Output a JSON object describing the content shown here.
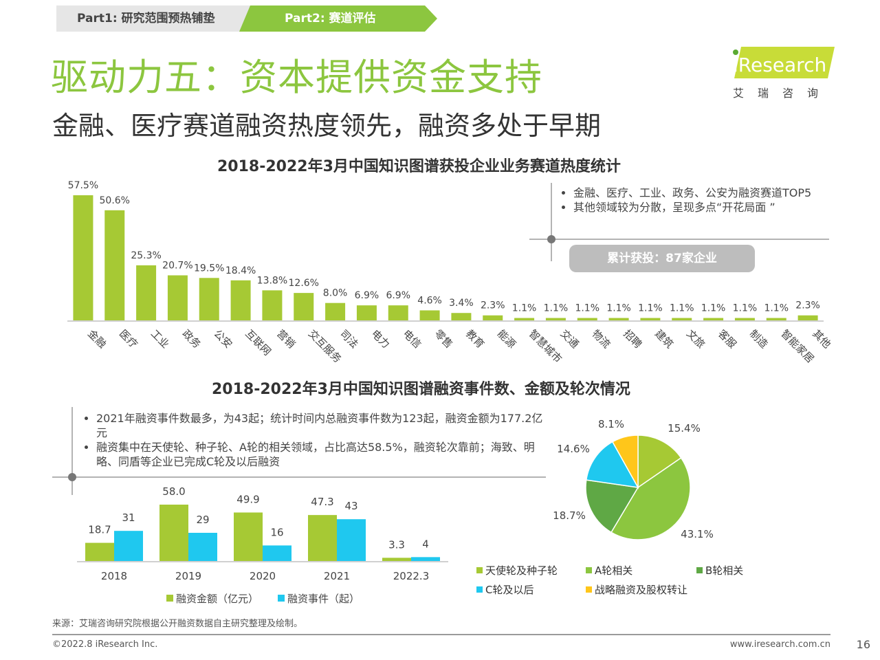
{
  "header": {
    "breadcrumb": [
      {
        "label": "Part1: 研究范围预热铺垫"
      },
      {
        "label": "Part2: 赛道评估"
      }
    ],
    "title": "驱动力五：资本提供资金支持",
    "subtitle": "金融、医疗赛道融资热度领先，融资多处于早期",
    "logo": {
      "brand": "iResearch",
      "cn": "艾瑞咨询"
    }
  },
  "colors": {
    "green": "#a6c934",
    "green_mid": "#8cc63f",
    "green_dark": "#5fa845",
    "cyan": "#1fc8ef",
    "yellow": "#ffc61a",
    "gray": "#bdbdbd"
  },
  "note1": {
    "bullets": [
      "金融、医疗、工业、政务、公安为融资赛道TOP5",
      "其他领域较为分散，呈现多点“开花局面 ”"
    ],
    "badge": "累计获投：87家企业"
  },
  "note2": {
    "bullets": [
      "2021年融资事件数最多，为43起；统计时间内总融资事件数为123起，融资金额为177.2亿元",
      "融资集中在天使轮、种子轮、A轮的相关领域，占比高达58.5%，融资轮次靠前；海致、明略、同盾等企业已完成C轮及以后融资"
    ]
  },
  "chart_data": [
    {
      "type": "bar",
      "title": "2018-2022年3月中国知识图谱获投企业业务赛道热度统计",
      "categories": [
        "金融",
        "医疗",
        "工业",
        "政务",
        "公安",
        "互联网",
        "营销",
        "交互服务",
        "司法",
        "电力",
        "电信",
        "零售",
        "教育",
        "能源",
        "智慧城市",
        "交通",
        "物流",
        "招聘",
        "建筑",
        "文旅",
        "客服",
        "制造",
        "智能家居",
        "其他"
      ],
      "values": [
        57.5,
        50.6,
        25.3,
        20.7,
        19.5,
        18.4,
        13.8,
        12.6,
        8.0,
        6.9,
        6.9,
        4.6,
        3.4,
        2.3,
        1.1,
        1.1,
        1.1,
        1.1,
        1.1,
        1.1,
        1.1,
        1.1,
        1.1,
        2.3
      ],
      "labels": [
        "57.5%",
        "50.6%",
        "25.3%",
        "20.7%",
        "19.5%",
        "18.4%",
        "13.8%",
        "12.6%",
        "8.0%",
        "6.9%",
        "6.9%",
        "4.6%",
        "3.4%",
        "2.3%",
        "1.1%",
        "1.1%",
        "1.1%",
        "1.1%",
        "1.1%",
        "1.1%",
        "1.1%",
        "1.1%",
        "1.1%",
        "2.3%"
      ],
      "unit": "%",
      "ylim": [
        0,
        60
      ],
      "grid": false
    },
    {
      "type": "bar",
      "categories": [
        "2018",
        "2019",
        "2020",
        "2021",
        "2022.3"
      ],
      "series": [
        {
          "name": "融资金额（亿元）",
          "values": [
            18.7,
            58.0,
            49.9,
            47.3,
            3.3
          ],
          "labels": [
            "18.7",
            "58.0",
            "49.9",
            "47.3",
            "3.3"
          ]
        },
        {
          "name": "融资事件（起）",
          "values": [
            31,
            29,
            16,
            43,
            4
          ],
          "labels": [
            "31",
            "29",
            "16",
            "43",
            "4"
          ]
        }
      ],
      "ylim": [
        0,
        60
      ],
      "legend": "bottom",
      "grid": false
    },
    {
      "type": "pie",
      "title": "2018-2022年3月中国知识图谱融资事件数、金额及轮次情况",
      "slices": [
        {
          "name": "天使轮及种子轮",
          "value": 15.4,
          "label": "15.4%"
        },
        {
          "name": "A轮相关",
          "value": 43.1,
          "label": "43.1%"
        },
        {
          "name": "B轮相关",
          "value": 18.7,
          "label": "18.7%"
        },
        {
          "name": "C轮及以后",
          "value": 14.6,
          "label": "14.6%"
        },
        {
          "name": "战略融资及股权转让",
          "value": 8.1,
          "label": "8.1%"
        }
      ],
      "legend": "bottom"
    }
  ],
  "footer": {
    "source": "来源：艾瑞咨询研究院根据公开融资数据自主研究整理及绘制。",
    "copyright": "©2022.8 iResearch Inc.",
    "website": "www.iresearch.com.cn",
    "page": "16"
  }
}
